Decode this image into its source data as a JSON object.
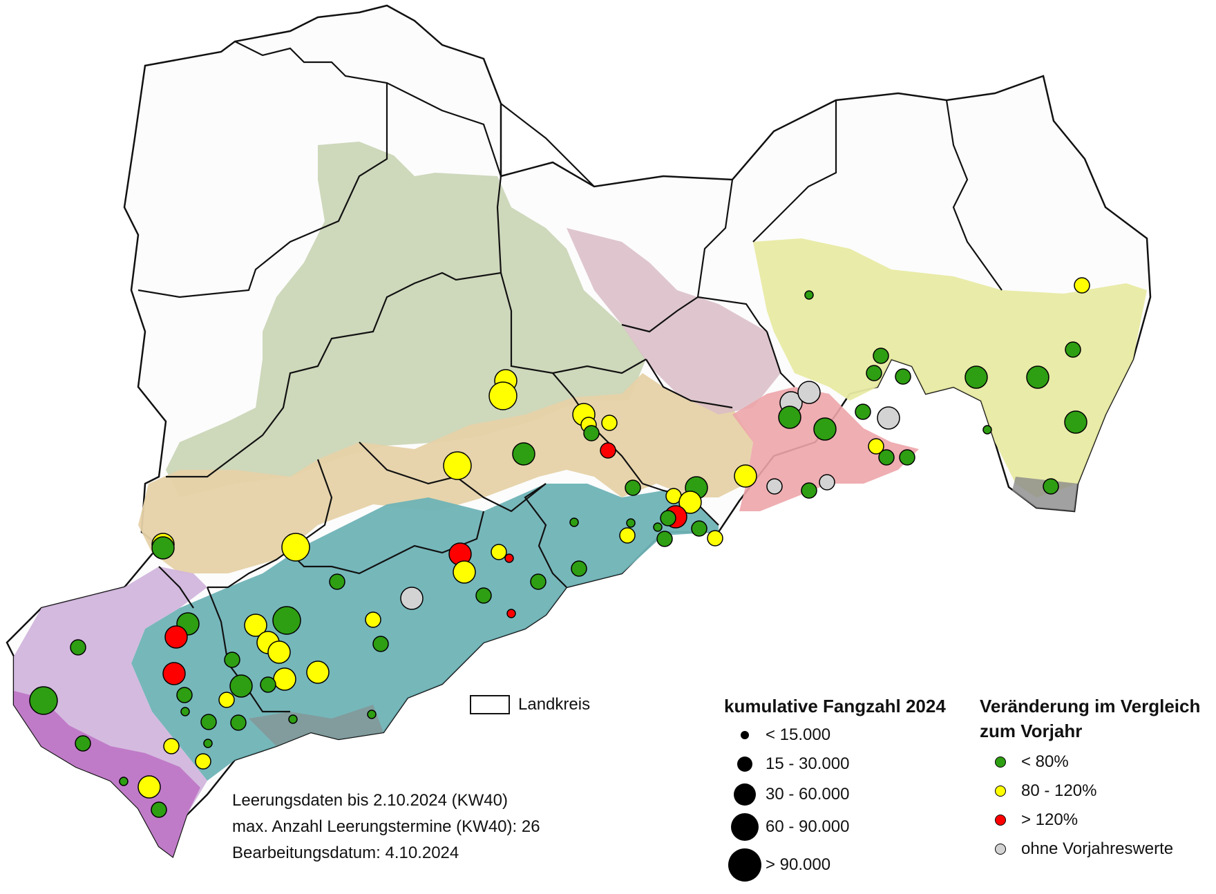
{
  "legend_landkreis": {
    "label": "Landkreis"
  },
  "info": {
    "line1": "Leerungsdaten bis 2.10.2024 (KW40)",
    "line2": "max. Anzahl Leerungstermine (KW40): 26",
    "line3": "Bearbeitungsdatum: 4.10.2024"
  },
  "legend_size": {
    "title": "kumulative Fangzahl 2024",
    "classes": [
      {
        "label": "< 15.000"
      },
      {
        "label": "15 - 30.000"
      },
      {
        "label": "30 - 60.000"
      },
      {
        "label": "60 - 90.000"
      },
      {
        "label": "> 90.000"
      }
    ]
  },
  "legend_change": {
    "title_line1": "Veränderung im Vergleich",
    "title_line2": "zum Vorjahr",
    "classes": [
      {
        "label": "< 80%",
        "color": "#2e9e12"
      },
      {
        "label": "80 - 120%",
        "color": "#ffff00"
      },
      {
        "label": "> 120%",
        "color": "#ff0000"
      },
      {
        "label": "ohne Vorjahreswerte",
        "color": "#d3d3d3"
      }
    ]
  },
  "colors": {
    "green": "#2e9e12",
    "yellow": "#ffff00",
    "red": "#ff0000",
    "grey": "#d3d3d3",
    "region_sage": "#c9d4b4",
    "region_sand": "#e6d2a8",
    "region_teal": "#6fb3b6",
    "region_lavender": "#d2b6dd",
    "region_magenta": "#bf77c6",
    "region_mauve": "#d9bcc6",
    "region_pink": "#eda5aa",
    "region_lime": "#e8eaa3",
    "region_darkgrey": "#8a8a8a"
  }
}
